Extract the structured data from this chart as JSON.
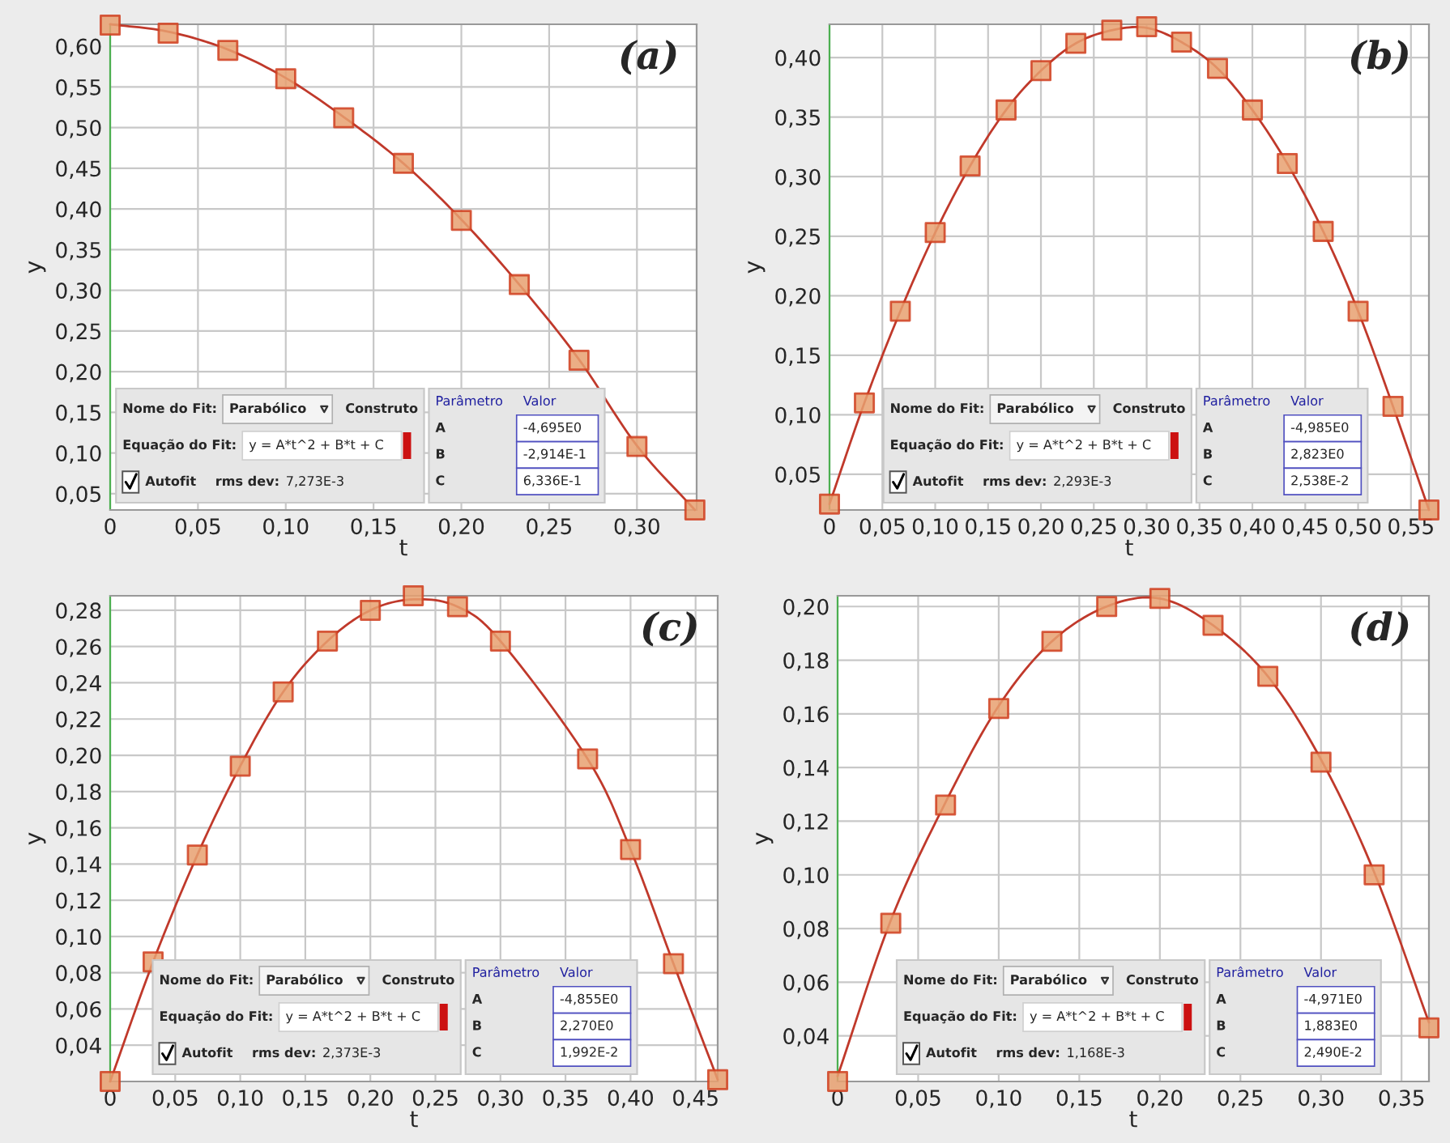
{
  "chart_data": [
    {
      "type": "scatter",
      "xlabel": "t",
      "ylabel": "y",
      "xlim": [
        0,
        0.334
      ],
      "ylim": [
        0.03,
        0.627
      ],
      "xticks": [
        {
          "value": 0,
          "label": "0"
        },
        {
          "value": 0.05,
          "label": "0,05"
        },
        {
          "value": 0.1,
          "label": "0,10"
        },
        {
          "value": 0.15,
          "label": "0,15"
        },
        {
          "value": 0.2,
          "label": "0,20"
        },
        {
          "value": 0.25,
          "label": "0,25"
        },
        {
          "value": 0.3,
          "label": "0,30"
        }
      ],
      "yticks": [
        {
          "value": 0.05,
          "label": "0,05"
        },
        {
          "value": 0.1,
          "label": "0,10"
        },
        {
          "value": 0.15,
          "label": "0,15"
        },
        {
          "value": 0.2,
          "label": "0,20"
        },
        {
          "value": 0.25,
          "label": "0,25"
        },
        {
          "value": 0.3,
          "label": "0,30"
        },
        {
          "value": 0.35,
          "label": "0,35"
        },
        {
          "value": 0.4,
          "label": "0,40"
        },
        {
          "value": 0.45,
          "label": "0,45"
        },
        {
          "value": 0.5,
          "label": "0,50"
        },
        {
          "value": 0.55,
          "label": "0,55"
        },
        {
          "value": 0.6,
          "label": "0,60"
        }
      ],
      "grid": true,
      "x": [
        0,
        0.033,
        0.067,
        0.1,
        0.133,
        0.167,
        0.2,
        0.233,
        0.267,
        0.3,
        0.333
      ],
      "series": [
        {
          "type": "line",
          "color": "#c0392b",
          "values": [
            0.627,
            0.618,
            0.596,
            0.561,
            0.513,
            0.456,
            0.387,
            0.307,
            0.215,
            0.109,
            0.03
          ]
        },
        {
          "type": "scatter",
          "marker": "square",
          "color": "#e8a070",
          "values": [
            0.626,
            0.616,
            0.595,
            0.56,
            0.512,
            0.456,
            0.386,
            0.307,
            0.214,
            0.108,
            0.03
          ]
        }
      ],
      "annotations": [
        "(a)",
        "Nome do Fit:",
        "Parabólico",
        "Construto",
        "Equação do Fit:",
        "y = A*t^2 + B*t + C",
        "Autofit",
        "rms dev:",
        "7,273E-3",
        "Parâmetro",
        "Valor",
        "A",
        "-4,695E0",
        "B",
        "-2,914E-1",
        "C",
        "6,336E-1"
      ]
    },
    {
      "type": "scatter",
      "xlabel": "t",
      "ylabel": "y",
      "xlim": [
        0,
        0.567
      ],
      "ylim": [
        0.02,
        0.428
      ],
      "xticks": [
        {
          "value": 0,
          "label": "0"
        },
        {
          "value": 0.05,
          "label": "0,05"
        },
        {
          "value": 0.1,
          "label": "0,10"
        },
        {
          "value": 0.15,
          "label": "0,15"
        },
        {
          "value": 0.2,
          "label": "0,20"
        },
        {
          "value": 0.25,
          "label": "0,25"
        },
        {
          "value": 0.3,
          "label": "0,30"
        },
        {
          "value": 0.35,
          "label": "0,35"
        },
        {
          "value": 0.4,
          "label": "0,40"
        },
        {
          "value": 0.45,
          "label": "0,45"
        },
        {
          "value": 0.5,
          "label": "0,50"
        },
        {
          "value": 0.55,
          "label": "0,55"
        }
      ],
      "yticks": [
        {
          "value": 0.05,
          "label": "0,05"
        },
        {
          "value": 0.1,
          "label": "0,10"
        },
        {
          "value": 0.15,
          "label": "0,15"
        },
        {
          "value": 0.2,
          "label": "0,20"
        },
        {
          "value": 0.25,
          "label": "0,25"
        },
        {
          "value": 0.3,
          "label": "0,30"
        },
        {
          "value": 0.35,
          "label": "0,35"
        },
        {
          "value": 0.4,
          "label": "0,40"
        }
      ],
      "grid": true,
      "x": [
        0,
        0.033,
        0.067,
        0.1,
        0.133,
        0.167,
        0.2,
        0.233,
        0.267,
        0.3,
        0.333,
        0.367,
        0.4,
        0.433,
        0.467,
        0.5,
        0.533,
        0.567
      ],
      "series": [
        {
          "type": "line",
          "color": "#c0392b",
          "values": [
            0.025,
            0.11,
            0.187,
            0.253,
            0.309,
            0.356,
            0.389,
            0.412,
            0.423,
            0.425,
            0.413,
            0.391,
            0.356,
            0.311,
            0.254,
            0.187,
            0.107,
            0.02
          ]
        },
        {
          "type": "scatter",
          "marker": "square",
          "color": "#e8a070",
          "values": [
            0.025,
            0.11,
            0.187,
            0.253,
            0.309,
            0.356,
            0.389,
            0.412,
            0.423,
            0.426,
            0.413,
            0.391,
            0.356,
            0.311,
            0.254,
            0.187,
            0.107,
            0.02
          ]
        }
      ],
      "annotations": [
        "(b)",
        "Nome do Fit:",
        "Parabólico",
        "Construto",
        "Equação do Fit:",
        "y = A*t^2 + B*t + C",
        "Autofit",
        "rms dev:",
        "2,293E-3",
        "Parâmetro",
        "Valor",
        "A",
        "-4,985E0",
        "B",
        "2,823E0",
        "C",
        "2,538E-2"
      ]
    },
    {
      "type": "scatter",
      "xlabel": "t",
      "ylabel": "y",
      "xlim": [
        0,
        0.467
      ],
      "ylim": [
        0.02,
        0.288
      ],
      "xticks": [
        {
          "value": 0,
          "label": "0"
        },
        {
          "value": 0.05,
          "label": "0,05"
        },
        {
          "value": 0.1,
          "label": "0,10"
        },
        {
          "value": 0.15,
          "label": "0,15"
        },
        {
          "value": 0.2,
          "label": "0,20"
        },
        {
          "value": 0.25,
          "label": "0,25"
        },
        {
          "value": 0.3,
          "label": "0,30"
        },
        {
          "value": 0.35,
          "label": "0,35"
        },
        {
          "value": 0.4,
          "label": "0,40"
        },
        {
          "value": 0.45,
          "label": "0,45"
        }
      ],
      "yticks": [
        {
          "value": 0.04,
          "label": "0,04"
        },
        {
          "value": 0.06,
          "label": "0,06"
        },
        {
          "value": 0.08,
          "label": "0,08"
        },
        {
          "value": 0.1,
          "label": "0,10"
        },
        {
          "value": 0.12,
          "label": "0,12"
        },
        {
          "value": 0.14,
          "label": "0,14"
        },
        {
          "value": 0.16,
          "label": "0,16"
        },
        {
          "value": 0.18,
          "label": "0,18"
        },
        {
          "value": 0.2,
          "label": "0,20"
        },
        {
          "value": 0.22,
          "label": "0,22"
        },
        {
          "value": 0.24,
          "label": "0,24"
        },
        {
          "value": 0.26,
          "label": "0,26"
        },
        {
          "value": 0.28,
          "label": "0,28"
        }
      ],
      "grid": true,
      "x": [
        0,
        0.033,
        0.067,
        0.1,
        0.133,
        0.167,
        0.2,
        0.233,
        0.267,
        0.3,
        0.367,
        0.4,
        0.433,
        0.467
      ],
      "series": [
        {
          "type": "line",
          "color": "#c0392b",
          "values": [
            0.02,
            0.086,
            0.145,
            0.194,
            0.235,
            0.263,
            0.28,
            0.286,
            0.282,
            0.263,
            0.198,
            0.148,
            0.085,
            0.021
          ]
        },
        {
          "type": "scatter",
          "marker": "square",
          "color": "#e8a070",
          "values": [
            0.02,
            0.086,
            0.145,
            0.194,
            0.235,
            0.263,
            0.28,
            0.288,
            0.282,
            0.263,
            0.198,
            0.148,
            0.085,
            0.021
          ]
        }
      ],
      "annotations": [
        "(c)",
        "Nome do Fit:",
        "Parabólico",
        "Construto",
        "Equação do Fit:",
        "y = A*t^2 + B*t + C",
        "Autofit",
        "rms dev:",
        "2,373E-3",
        "Parâmetro",
        "Valor",
        "A",
        "-4,855E0",
        "B",
        "2,270E0",
        "C",
        "1,992E-2"
      ]
    },
    {
      "type": "scatter",
      "xlabel": "t",
      "ylabel": "y",
      "xlim": [
        0,
        0.367
      ],
      "ylim": [
        0.023,
        0.204
      ],
      "xticks": [
        {
          "value": 0,
          "label": "0"
        },
        {
          "value": 0.05,
          "label": "0,05"
        },
        {
          "value": 0.1,
          "label": "0,10"
        },
        {
          "value": 0.15,
          "label": "0,15"
        },
        {
          "value": 0.2,
          "label": "0,20"
        },
        {
          "value": 0.25,
          "label": "0,25"
        },
        {
          "value": 0.3,
          "label": "0,30"
        },
        {
          "value": 0.35,
          "label": "0,35"
        }
      ],
      "yticks": [
        {
          "value": 0.04,
          "label": "0,04"
        },
        {
          "value": 0.06,
          "label": "0,06"
        },
        {
          "value": 0.08,
          "label": "0,08"
        },
        {
          "value": 0.1,
          "label": "0,10"
        },
        {
          "value": 0.12,
          "label": "0,12"
        },
        {
          "value": 0.14,
          "label": "0,14"
        },
        {
          "value": 0.16,
          "label": "0,16"
        },
        {
          "value": 0.18,
          "label": "0,18"
        },
        {
          "value": 0.2,
          "label": "0,20"
        }
      ],
      "grid": true,
      "x": [
        0,
        0.033,
        0.067,
        0.1,
        0.133,
        0.167,
        0.2,
        0.233,
        0.267,
        0.3,
        0.333,
        0.367
      ],
      "series": [
        {
          "type": "line",
          "color": "#c0392b",
          "values": [
            0.025,
            0.083,
            0.127,
            0.163,
            0.187,
            0.2,
            0.203,
            0.193,
            0.174,
            0.143,
            0.101,
            0.045
          ]
        },
        {
          "type": "scatter",
          "marker": "square",
          "color": "#e8a070",
          "values": [
            0.023,
            0.082,
            0.126,
            0.162,
            0.187,
            0.2,
            0.203,
            0.193,
            0.174,
            0.142,
            0.1,
            0.043
          ]
        }
      ],
      "annotations": [
        "(d)",
        "Nome do Fit:",
        "Parabólico",
        "Construto",
        "Equação do Fit:",
        "y = A*t^2 + B*t + C",
        "Autofit",
        "rms dev:",
        "1,168E-3",
        "Parâmetro",
        "Valor",
        "A",
        "-4,971E0",
        "B",
        "1,883E0",
        "C",
        "2,490E-2"
      ]
    }
  ]
}
